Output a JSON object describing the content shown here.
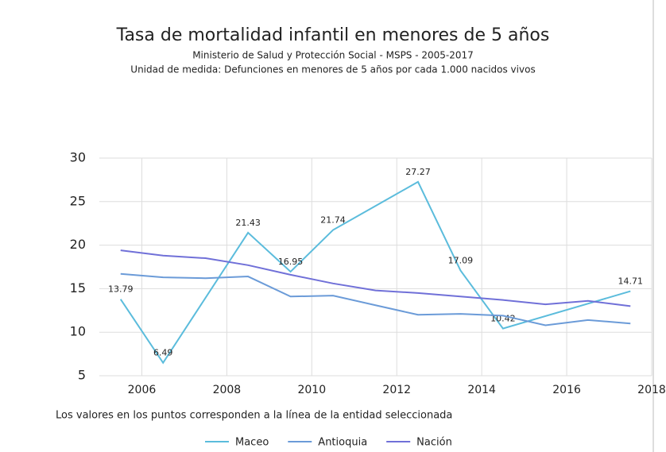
{
  "chart_data": {
    "type": "line",
    "title": "Tasa de mortalidad infantil en menores de 5 años",
    "subtitle": [
      "Ministerio de Salud y Protección Social - MSPS - 2005-2017",
      "Unidad de medida: Defunciones en menores de 5 años por cada 1.000 nacidos vivos"
    ],
    "note": "Los valores en los puntos corresponden a la línea de la entidad seleccionada",
    "xlim": [
      2005,
      2018
    ],
    "xticks": [
      2006,
      2008,
      2010,
      2012,
      2014,
      2016,
      2018
    ],
    "ylim": [
      5,
      30
    ],
    "yticks": [
      5,
      10,
      15,
      20,
      25,
      30
    ],
    "grid": true,
    "legend": "bottom",
    "series": [
      {
        "name": "Maceo",
        "color": "#5bbcdc",
        "labeled": true,
        "x": [
          2005.5,
          2006.5,
          2008.5,
          2009.5,
          2010.5,
          2012.5,
          2013.5,
          2014.5,
          2017.5
        ],
        "values": [
          13.79,
          6.49,
          21.43,
          16.95,
          21.74,
          27.27,
          17.09,
          10.42,
          14.71
        ]
      },
      {
        "name": "Antioquia",
        "color": "#6b9bd8",
        "x": [
          2005.5,
          2006.5,
          2007.5,
          2008.5,
          2009.5,
          2010.5,
          2011.5,
          2012.5,
          2013.5,
          2014.5,
          2015.5,
          2016.5,
          2017.5
        ],
        "values": [
          16.7,
          16.3,
          16.2,
          16.4,
          14.1,
          14.2,
          13.1,
          12.0,
          12.1,
          11.9,
          10.8,
          11.4,
          11.0
        ]
      },
      {
        "name": "Nación",
        "color": "#7070d8",
        "x": [
          2005.5,
          2006.5,
          2007.5,
          2008.5,
          2009.5,
          2010.5,
          2011.5,
          2012.5,
          2013.5,
          2014.5,
          2015.5,
          2016.5,
          2017.5
        ],
        "values": [
          19.4,
          18.8,
          18.5,
          17.7,
          16.6,
          15.6,
          14.8,
          14.5,
          14.1,
          13.7,
          13.2,
          13.6,
          13.0
        ]
      }
    ]
  }
}
